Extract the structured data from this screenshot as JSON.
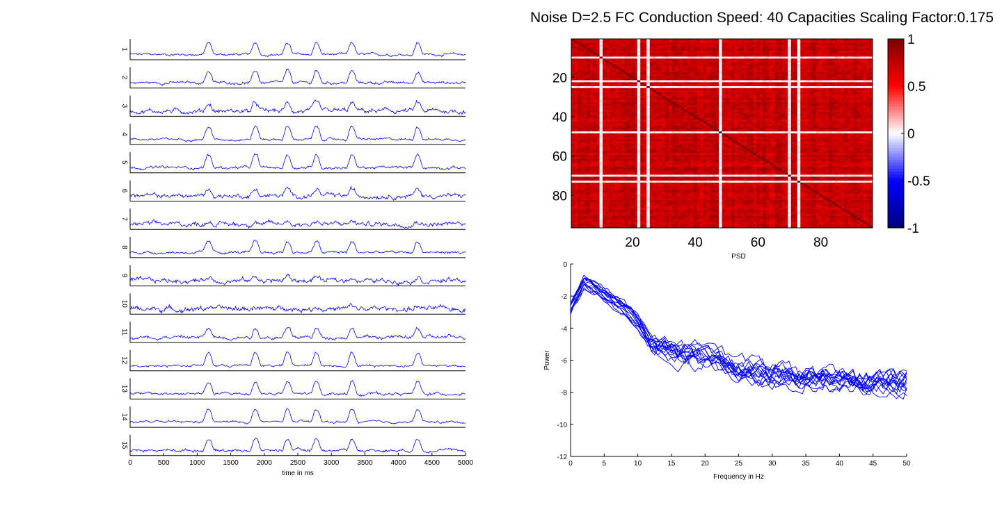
{
  "figure": {
    "title": "Noise D=2.5 FC Conduction Speed: 40  Capacities Scaling Factor:0.175"
  },
  "chart_data": [
    {
      "type": "line",
      "panel": "timeseries",
      "xlabel": "time in ms",
      "xlim": [
        0,
        5000
      ],
      "xticks": [
        "0",
        "500",
        "1000",
        "1500",
        "2000",
        "2500",
        "3000",
        "3500",
        "4000",
        "4500",
        "5000"
      ],
      "channels": [
        "1",
        "2",
        "3",
        "4",
        "5",
        "6",
        "7",
        "8",
        "9",
        "10",
        "11",
        "12",
        "13",
        "14",
        "15"
      ],
      "burst_times_ms": [
        1150,
        1850,
        2330,
        2760,
        3290,
        4270
      ],
      "burst_amplitude": [
        0.55,
        0.55,
        0.35,
        0.6,
        0.6,
        0.3,
        0.15,
        0.5,
        0.2,
        0.12,
        0.4,
        0.6,
        0.55,
        0.6,
        0.55
      ],
      "noise_level": [
        0.06,
        0.07,
        0.12,
        0.06,
        0.07,
        0.11,
        0.12,
        0.07,
        0.12,
        0.13,
        0.09,
        0.06,
        0.07,
        0.06,
        0.07
      ],
      "color": "#0000ff"
    },
    {
      "type": "heatmap",
      "panel": "fc-matrix",
      "size": 96,
      "xticks": [
        "20",
        "40",
        "60",
        "80"
      ],
      "yticks": [
        "20",
        "40",
        "60",
        "80"
      ],
      "low_correlation_rows": [
        9,
        21,
        24,
        47,
        69,
        72
      ],
      "colorbar": {
        "ticks": [
          "1",
          "0.5",
          "0",
          "-0.5",
          "-1"
        ],
        "range": [
          -1,
          1
        ]
      },
      "base_correlation": 0.72
    },
    {
      "type": "line",
      "panel": "psd",
      "title": "PSD",
      "xlabel": "Frequency in Hz",
      "ylabel": "Power",
      "xlim": [
        0,
        50
      ],
      "ylim": [
        -12,
        0
      ],
      "xticks": [
        "0",
        "5",
        "10",
        "15",
        "20",
        "25",
        "30",
        "35",
        "40",
        "45",
        "50"
      ],
      "yticks": [
        "0",
        "-2",
        "-4",
        "-6",
        "-8",
        "-10",
        "-12"
      ],
      "series_count": 15,
      "mean_curve": {
        "x": [
          0,
          2,
          4,
          6,
          8,
          10,
          12,
          15,
          20,
          25,
          30,
          35,
          40,
          45,
          50
        ],
        "y": [
          -2.8,
          -1.2,
          -1.6,
          -2.2,
          -2.8,
          -3.6,
          -5.0,
          -5.4,
          -5.8,
          -6.6,
          -6.9,
          -7.1,
          -7.2,
          -7.5,
          -7.3
        ]
      },
      "color": "#0000ff"
    }
  ]
}
